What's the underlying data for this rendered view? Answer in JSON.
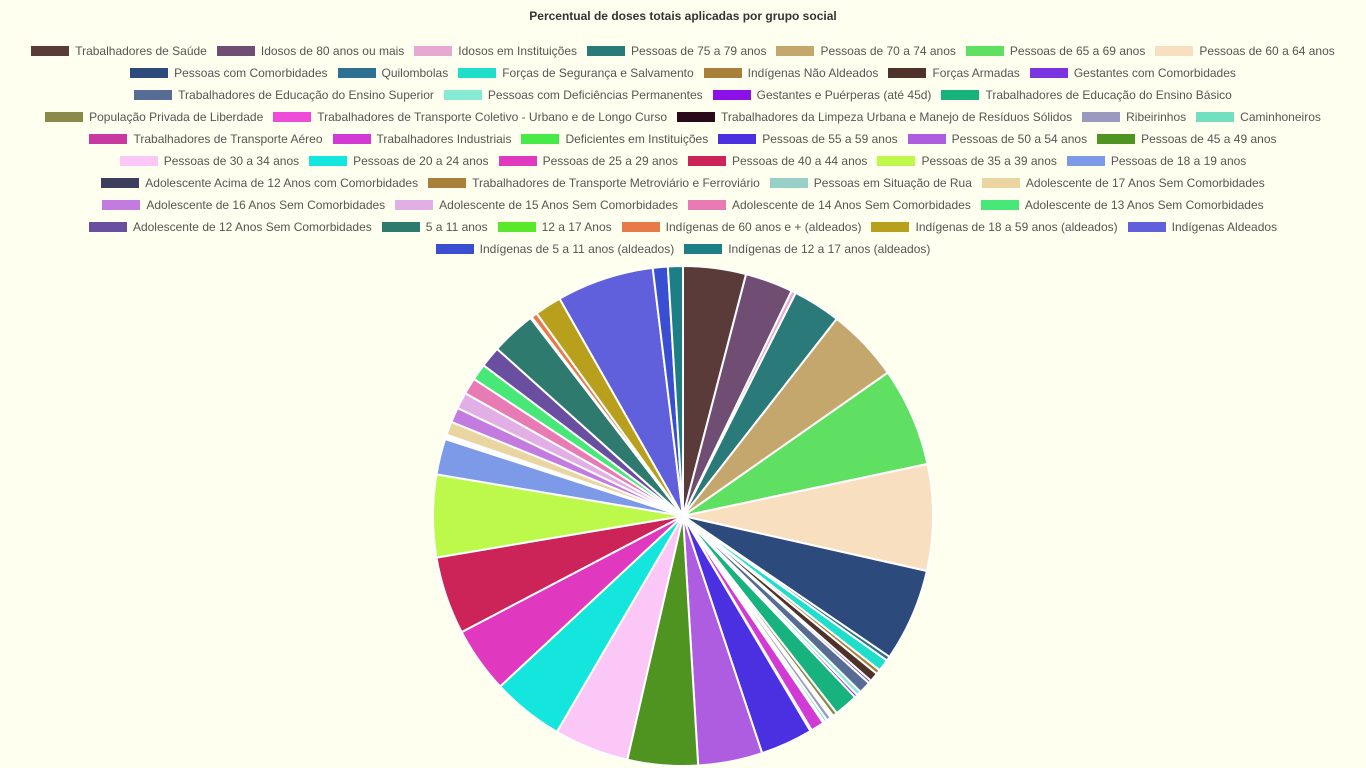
{
  "chart_data": {
    "type": "pie",
    "title": "Percentual de doses totais aplicadas por grupo social",
    "legend_position": "top",
    "series": [
      {
        "name": "Trabalhadores de Saúde",
        "value": 4.2,
        "color": "#5b3a3a"
      },
      {
        "name": "Idosos de 80 anos ou mais",
        "value": 3.2,
        "color": "#704d73"
      },
      {
        "name": "Idosos em Instituições",
        "value": 0.3,
        "color": "#e8a8d4"
      },
      {
        "name": "Pessoas de 75 a 79 anos",
        "value": 3.2,
        "color": "#2a7a7a"
      },
      {
        "name": "Pessoas de 70 a 74 anos",
        "value": 4.9,
        "color": "#c4a76c"
      },
      {
        "name": "Pessoas de 65 a 69 anos",
        "value": 6.6,
        "color": "#5fe063"
      },
      {
        "name": "Pessoas de 60 a 64 anos",
        "value": 7.1,
        "color": "#f8dfc0"
      },
      {
        "name": "Pessoas com Comorbidades",
        "value": 6.2,
        "color": "#2c4a7c"
      },
      {
        "name": "Quilombolas",
        "value": 0.3,
        "color": "#2e7091"
      },
      {
        "name": "Forças de Segurança e Salvamento",
        "value": 0.8,
        "color": "#20dfca"
      },
      {
        "name": "Indígenas Não Aldeados",
        "value": 0.3,
        "color": "#a8803a"
      },
      {
        "name": "Forças Armadas",
        "value": 0.6,
        "color": "#4e3229"
      },
      {
        "name": "Gestantes com Comorbidades",
        "value": 0.2,
        "color": "#7a35e0"
      },
      {
        "name": "Trabalhadores de Educação do Ensino Superior",
        "value": 0.8,
        "color": "#566c94"
      },
      {
        "name": "Pessoas com Deficiências Permanentes",
        "value": 0.3,
        "color": "#86ebd5"
      },
      {
        "name": "Gestantes e Puérperas (até 45d)",
        "value": 0.2,
        "color": "#8c10e8"
      },
      {
        "name": "Trabalhadores de Educação do Ensino Básico",
        "value": 1.6,
        "color": "#17b27e"
      },
      {
        "name": "População Privada de Liberdade",
        "value": 0.3,
        "color": "#8a8a4a"
      },
      {
        "name": "Trabalhadores de Transporte Coletivo - Urbano e de Longo Curso",
        "value": 0.1,
        "color": "#ee4bd8"
      },
      {
        "name": "Trabalhadores da Limpeza Urbana e Manejo de Resíduos Sólidos",
        "value": 0.1,
        "color": "#2a0a1a"
      },
      {
        "name": "Ribeirinhos",
        "value": 0.3,
        "color": "#9a9ac0"
      },
      {
        "name": "Caminhoneiros",
        "value": 0.2,
        "color": "#72e0c0"
      },
      {
        "name": "Trabalhadores de Transporte Aéreo",
        "value": 0.1,
        "color": "#c83aa0"
      },
      {
        "name": "Trabalhadores Industriais",
        "value": 0.9,
        "color": "#d23ad6"
      },
      {
        "name": "Deficientes em Instituições",
        "value": 0.1,
        "color": "#48ea48"
      },
      {
        "name": "Pessoas de 55 a 59 anos",
        "value": 3.5,
        "color": "#4a30e0"
      },
      {
        "name": "Pessoas de 50 a 54 anos",
        "value": 4.3,
        "color": "#ae5ce0"
      },
      {
        "name": "Pessoas de 45 a 49 anos",
        "value": 4.7,
        "color": "#4f9420"
      },
      {
        "name": "Pessoas de 30 a 34 anos",
        "value": 5.0,
        "color": "#fbc7f7"
      },
      {
        "name": "Pessoas de 20 a 24 anos",
        "value": 4.8,
        "color": "#14e6de"
      },
      {
        "name": "Pessoas de 25 a 29 anos",
        "value": 4.4,
        "color": "#e038be"
      },
      {
        "name": "Pessoas de 40 a 44 anos",
        "value": 5.2,
        "color": "#cc2358"
      },
      {
        "name": "Pessoas de 35 a 39 anos",
        "value": 5.5,
        "color": "#bdf94a"
      },
      {
        "name": "Pessoas de 18 a 19 anos",
        "value": 2.4,
        "color": "#7c9ae8"
      },
      {
        "name": "Adolescente Acima de 12 Anos com Comorbidades",
        "value": 0.1,
        "color": "#3d3d5c"
      },
      {
        "name": "Trabalhadores de Transporte Metroviário e Ferroviário",
        "value": 0.1,
        "color": "#a8803a"
      },
      {
        "name": "Pessoas em Situação de Rua",
        "value": 0.1,
        "color": "#98d0c8"
      },
      {
        "name": "Adolescente de 17 Anos Sem Comorbidades",
        "value": 0.9,
        "color": "#ead4a0"
      },
      {
        "name": "Adolescente de 16 Anos Sem Comorbidades",
        "value": 1.0,
        "color": "#c47be0"
      },
      {
        "name": "Adolescente de 15 Anos Sem Comorbidades",
        "value": 1.1,
        "color": "#e2aee6"
      },
      {
        "name": "Adolescente de 14 Anos Sem Comorbidades",
        "value": 1.1,
        "color": "#e87bb4"
      },
      {
        "name": "Adolescente de 13 Anos Sem Comorbidades",
        "value": 1.1,
        "color": "#48e878"
      },
      {
        "name": "Adolescente de 12 Anos Sem Comorbidades",
        "value": 1.4,
        "color": "#6a4fa0"
      },
      {
        "name": "5 a 11 anos",
        "value": 3.0,
        "color": "#2e7a6e"
      },
      {
        "name": "12 a 17 Anos",
        "value": 0.1,
        "color": "#5ae82a"
      },
      {
        "name": "Indígenas de 60 anos e + (aldeados)",
        "value": 0.4,
        "color": "#e87a4a"
      },
      {
        "name": "Indígenas de 18 a 59 anos (aldeados)",
        "value": 1.8,
        "color": "#b8a01c"
      },
      {
        "name": "Indígenas Aldeados",
        "value": 6.5,
        "color": "#6060dc"
      },
      {
        "name": "Indígenas de 5 a 11 anos (aldeados)",
        "value": 1.0,
        "color": "#3a4ed2"
      },
      {
        "name": "Indígenas de 12 a 17 anos (aldeados)",
        "value": 1.0,
        "color": "#1e7e86"
      }
    ]
  },
  "legend_rows": [
    [
      0,
      1,
      2,
      3,
      4,
      5,
      6
    ],
    [
      7,
      8,
      9,
      10,
      11,
      12
    ],
    [
      13,
      14,
      15,
      16
    ],
    [
      17,
      18,
      19,
      20,
      21
    ],
    [
      22,
      23,
      24,
      25,
      26,
      27
    ],
    [
      28,
      29,
      30,
      31,
      32,
      33
    ],
    [
      34,
      35,
      36,
      37
    ],
    [
      38,
      39,
      40,
      41
    ],
    [
      42,
      43,
      44,
      45,
      46,
      47
    ],
    [
      48,
      49
    ]
  ]
}
